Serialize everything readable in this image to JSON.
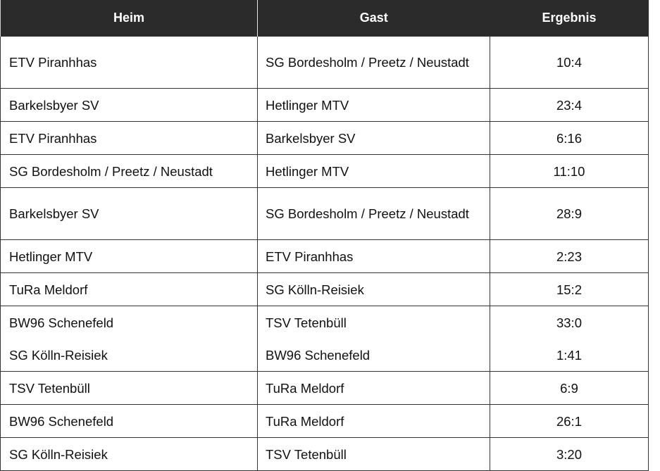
{
  "header": {
    "heim": "Heim",
    "gast": "Gast",
    "ergebnis": "Ergebnis"
  },
  "colors": {
    "header_bg": "#2b2b2b",
    "header_text": "#ffffff",
    "border": "#333333"
  },
  "rows": [
    {
      "heim": "ETV Piranhhas",
      "gast": "SG Bordesholm / Preetz / Neustadt",
      "ergebnis": "10:4"
    },
    {
      "heim": "Barkelsbyer SV",
      "gast": "Hetlinger MTV",
      "ergebnis": "23:4"
    },
    {
      "heim": "ETV Piranhhas",
      "gast": "Barkelsbyer SV",
      "ergebnis": "6:16"
    },
    {
      "heim": "SG Bordesholm / Preetz / Neustadt",
      "gast": "Hetlinger MTV",
      "ergebnis": "11:10"
    },
    {
      "heim": "Barkelsbyer SV",
      "gast": "SG Bordesholm / Preetz / Neustadt",
      "ergebnis": "28:9"
    },
    {
      "heim": "Hetlinger MTV",
      "gast": "ETV Piranhhas",
      "ergebnis": "2:23"
    },
    {
      "heim": "TuRa Meldorf",
      "gast": "SG Kölln-Reisiek",
      "ergebnis": "15:2"
    },
    {
      "heim": "BW96 Schenefeld",
      "gast": "TSV Tetenbüll",
      "ergebnis": "33:0"
    },
    {
      "heim": "SG Kölln-Reisiek",
      "gast": "BW96 Schenefeld",
      "ergebnis": "1:41"
    },
    {
      "heim": "TSV Tetenbüll",
      "gast": "TuRa Meldorf",
      "ergebnis": "6:9"
    },
    {
      "heim": "BW96 Schenefeld",
      "gast": "TuRa Meldorf",
      "ergebnis": "26:1"
    },
    {
      "heim": "SG Kölln-Reisiek",
      "gast": "TSV Tetenbüll",
      "ergebnis": "3:20"
    }
  ]
}
